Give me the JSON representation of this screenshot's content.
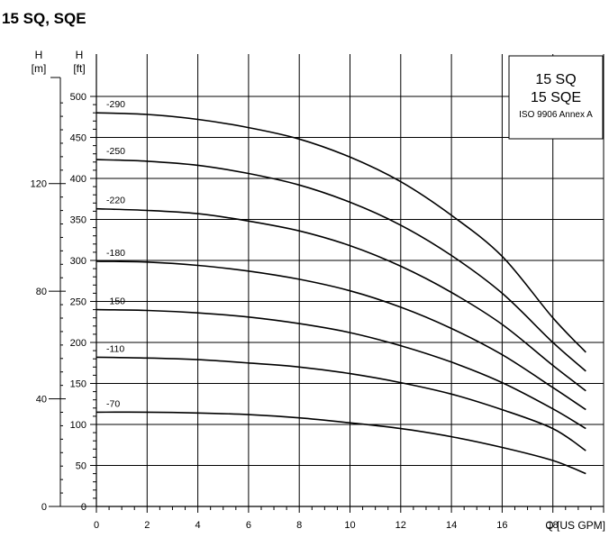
{
  "title": "15 SQ, SQE",
  "legend": {
    "model_lines": [
      "15 SQ",
      "15 SQE"
    ],
    "standard": "ISO 9906 Annex A"
  },
  "axis_labels": {
    "h_m_symbol": "H",
    "h_m_unit": "[m]",
    "h_ft_symbol": "H",
    "h_ft_unit": "[ft]",
    "x_label": "Q [US GPM]"
  },
  "chart_data": {
    "type": "line",
    "title": "15 SQ, SQE",
    "xlabel": "Q [US GPM]",
    "ylabel": "H [ft]",
    "y2label": "H [m]",
    "xlim": [
      0,
      20
    ],
    "ylim": [
      0,
      500
    ],
    "y2lim": [
      0,
      152.4
    ],
    "x_ticks": [
      0,
      2,
      4,
      6,
      8,
      10,
      12,
      14,
      16,
      18
    ],
    "y_ticks": [
      0,
      50,
      100,
      150,
      200,
      250,
      300,
      350,
      400,
      450,
      500
    ],
    "y2_ticks": [
      0,
      40,
      80,
      120
    ],
    "grid": true,
    "series": [
      {
        "name": "-290",
        "x": [
          0,
          2,
          4,
          6,
          8,
          10,
          12,
          14,
          16,
          18,
          19.3
        ],
        "values": [
          480,
          478,
          472,
          462,
          448,
          426,
          396,
          355,
          305,
          230,
          188
        ]
      },
      {
        "name": "-250",
        "x": [
          0,
          2,
          4,
          6,
          8,
          10,
          12,
          14,
          16,
          18,
          19.3
        ],
        "values": [
          423,
          421,
          416,
          406,
          392,
          371,
          343,
          306,
          260,
          200,
          165
        ]
      },
      {
        "name": "-220",
        "x": [
          0,
          2,
          4,
          6,
          8,
          10,
          12,
          14,
          16,
          18,
          19.3
        ],
        "values": [
          363,
          361,
          357,
          348,
          336,
          318,
          293,
          261,
          222,
          172,
          141
        ]
      },
      {
        "name": "-180",
        "x": [
          0,
          2,
          4,
          6,
          8,
          10,
          12,
          14,
          16,
          18,
          19.3
        ],
        "values": [
          299,
          298,
          294,
          287,
          277,
          263,
          243,
          217,
          185,
          145,
          118
        ]
      },
      {
        "name": "-150",
        "x": [
          0,
          2,
          4,
          6,
          8,
          10,
          12,
          14,
          16,
          18,
          19.3
        ],
        "values": [
          240,
          239,
          236,
          231,
          223,
          212,
          196,
          176,
          151,
          119,
          95
        ]
      },
      {
        "name": "-110",
        "x": [
          0,
          2,
          4,
          6,
          8,
          10,
          12,
          14,
          16,
          18,
          19.3
        ],
        "values": [
          182,
          181,
          179,
          175,
          170,
          162,
          151,
          137,
          118,
          95,
          68
        ]
      },
      {
        "name": "-70",
        "x": [
          0,
          2,
          4,
          6,
          8,
          10,
          12,
          14,
          16,
          18,
          19.3
        ],
        "values": [
          115,
          115,
          114,
          112,
          108,
          102,
          95,
          85,
          72,
          56,
          40
        ]
      }
    ]
  }
}
